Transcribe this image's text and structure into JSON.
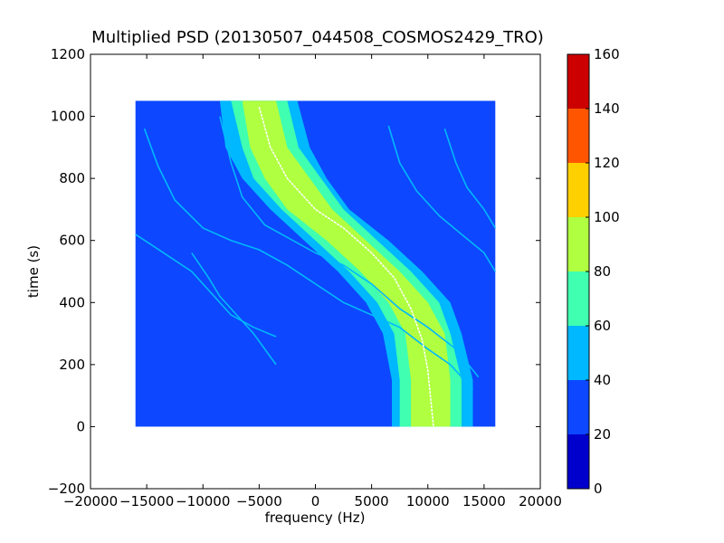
{
  "chart_data": {
    "type": "heatmap",
    "title": "Multiplied PSD (20130507_044508_COSMOS2429_TRO)",
    "xlabel": "frequency (Hz)",
    "ylabel": "time (s)",
    "xlim": [
      -20000,
      20000
    ],
    "ylim": [
      -200,
      1200
    ],
    "x_ticks": [
      -20000,
      -15000,
      -10000,
      -5000,
      0,
      5000,
      10000,
      15000,
      20000
    ],
    "y_ticks": [
      -200,
      0,
      200,
      400,
      600,
      800,
      1000,
      1200
    ],
    "data_extent": {
      "x": [
        -16000,
        16000
      ],
      "y": [
        0,
        1050
      ]
    },
    "background_value": 25,
    "colorbar": {
      "ticks": [
        0,
        20,
        40,
        60,
        80,
        100,
        120,
        140,
        160
      ],
      "range": [
        0,
        160
      ],
      "levels": [
        {
          "from": 0,
          "to": 20,
          "color": "#0000cd"
        },
        {
          "from": 20,
          "to": 40,
          "color": "#0d47ff"
        },
        {
          "from": 40,
          "to": 60,
          "color": "#00b8ff"
        },
        {
          "from": 60,
          "to": 80,
          "color": "#40ffb0"
        },
        {
          "from": 80,
          "to": 100,
          "color": "#b0ff40"
        },
        {
          "from": 100,
          "to": 120,
          "color": "#ffd000"
        },
        {
          "from": 120,
          "to": 140,
          "color": "#ff5500"
        },
        {
          "from": 140,
          "to": 160,
          "color": "#cc0000"
        }
      ]
    },
    "signal_band": {
      "description_level_outer": 40,
      "description_level_mid": 60,
      "description_level_core": 80,
      "outer": [
        {
          "time": 1050,
          "left": -8500,
          "right": -1600
        },
        {
          "time": 900,
          "left": -8000,
          "right": -500
        },
        {
          "time": 800,
          "left": -6500,
          "right": 1000
        },
        {
          "time": 700,
          "left": -4000,
          "right": 3000
        },
        {
          "time": 600,
          "left": -1000,
          "right": 6500
        },
        {
          "time": 500,
          "left": 2000,
          "right": 9500
        },
        {
          "time": 400,
          "left": 4500,
          "right": 12000
        },
        {
          "time": 300,
          "left": 6000,
          "right": 13000
        },
        {
          "time": 150,
          "left": 6800,
          "right": 14000
        },
        {
          "time": 0,
          "left": 6800,
          "right": 14000
        }
      ],
      "mid": [
        {
          "time": 1050,
          "left": -7500,
          "right": -2500
        },
        {
          "time": 900,
          "left": -6500,
          "right": -1500
        },
        {
          "time": 800,
          "left": -5500,
          "right": 500
        },
        {
          "time": 700,
          "left": -3000,
          "right": 2500
        },
        {
          "time": 600,
          "left": 0,
          "right": 5500
        },
        {
          "time": 500,
          "left": 3000,
          "right": 8500
        },
        {
          "time": 400,
          "left": 5500,
          "right": 11000
        },
        {
          "time": 300,
          "left": 7000,
          "right": 12000
        },
        {
          "time": 150,
          "left": 7500,
          "right": 13000
        },
        {
          "time": 0,
          "left": 7500,
          "right": 13000
        }
      ],
      "core": [
        {
          "time": 1050,
          "left": -6500,
          "right": -3500
        },
        {
          "time": 900,
          "left": -5800,
          "right": -2500
        },
        {
          "time": 800,
          "left": -4500,
          "right": -500
        },
        {
          "time": 700,
          "left": -2500,
          "right": 1500
        },
        {
          "time": 600,
          "left": 1000,
          "right": 4500
        },
        {
          "time": 500,
          "left": 4000,
          "right": 7500
        },
        {
          "time": 400,
          "left": 6500,
          "right": 10000
        },
        {
          "time": 300,
          "left": 8000,
          "right": 11500
        },
        {
          "time": 150,
          "left": 8500,
          "right": 12000
        },
        {
          "time": 0,
          "left": 8500,
          "right": 12000
        }
      ],
      "center_line": [
        [
          -5000,
          1030
        ],
        [
          -4000,
          900
        ],
        [
          -2500,
          800
        ],
        [
          0,
          700
        ],
        [
          2500,
          640
        ],
        [
          5000,
          560
        ],
        [
          7000,
          480
        ],
        [
          8500,
          380
        ],
        [
          9500,
          280
        ],
        [
          10000,
          180
        ],
        [
          10500,
          0
        ]
      ]
    },
    "harmonic_traces": [
      {
        "points": [
          [
            -15200,
            960
          ],
          [
            -14000,
            840
          ],
          [
            -12500,
            730
          ],
          [
            -10000,
            640
          ],
          [
            -7500,
            600
          ],
          [
            -5000,
            570
          ],
          [
            -2500,
            520
          ],
          [
            0,
            460
          ],
          [
            2500,
            400
          ],
          [
            5000,
            360
          ],
          [
            7500,
            320
          ],
          [
            10000,
            250
          ],
          [
            12000,
            200
          ],
          [
            14000,
            120
          ]
        ],
        "level": 45
      },
      {
        "points": [
          [
            -8500,
            1000
          ],
          [
            -7500,
            850
          ],
          [
            -6500,
            740
          ],
          [
            -4500,
            650
          ],
          [
            -2000,
            600
          ],
          [
            0,
            560
          ],
          [
            2500,
            520
          ],
          [
            5000,
            460
          ],
          [
            7500,
            380
          ],
          [
            10000,
            320
          ],
          [
            12500,
            250
          ],
          [
            14500,
            160
          ]
        ],
        "level": 45
      },
      {
        "points": [
          [
            6500,
            970
          ],
          [
            7500,
            850
          ],
          [
            9000,
            760
          ],
          [
            11000,
            680
          ],
          [
            13000,
            620
          ],
          [
            15000,
            560
          ],
          [
            16000,
            500
          ]
        ],
        "level": 45
      },
      {
        "points": [
          [
            11500,
            960
          ],
          [
            12500,
            850
          ],
          [
            13500,
            770
          ],
          [
            15000,
            700
          ],
          [
            16000,
            640
          ]
        ],
        "level": 45
      },
      {
        "points": [
          [
            -16000,
            620
          ],
          [
            -13500,
            560
          ],
          [
            -11000,
            500
          ],
          [
            -9000,
            420
          ],
          [
            -7500,
            360
          ],
          [
            -5500,
            320
          ],
          [
            -3500,
            290
          ]
        ],
        "level": 40
      },
      {
        "points": [
          [
            -11000,
            560
          ],
          [
            -9500,
            480
          ],
          [
            -8500,
            420
          ],
          [
            -7000,
            360
          ],
          [
            -5500,
            300
          ],
          [
            -3500,
            200
          ]
        ],
        "level": 40
      }
    ]
  }
}
